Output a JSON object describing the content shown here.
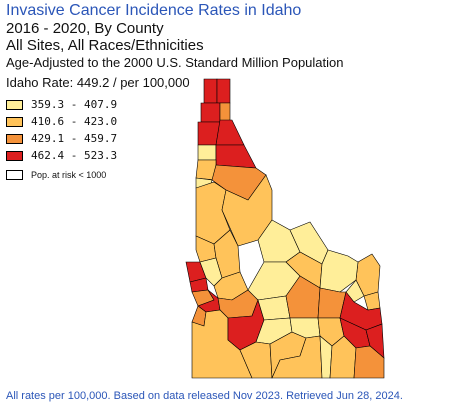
{
  "title": "Invasive Cancer Incidence Rates in Idaho",
  "subtitle1": "2016 - 2020, By County",
  "subtitle2": "All Sites, All Races/Ethnicities",
  "subtitle3": "Age-Adjusted to the 2000 U.S. Standard Million Population",
  "state_rate": "Idaho Rate: 449.2 / per 100,000",
  "legend": [
    {
      "range": "359.3 - 407.9",
      "color": "#ffee99"
    },
    {
      "range": "410.6 - 423.0",
      "color": "#ffc35a"
    },
    {
      "range": "429.1 - 459.7",
      "color": "#f4923a"
    },
    {
      "range": "462.4 - 523.3",
      "color": "#dc1f1f"
    }
  ],
  "legend_na": {
    "label": "Pop. at risk < 1000",
    "color": "#ffffff"
  },
  "footer": "All rates per 100,000. Based on data released Nov 2023. Retrieved Jun 28, 2024.",
  "colors": {
    "c1": "#ffee99",
    "c2": "#ffc35a",
    "c3": "#f4923a",
    "c4": "#dc1f1f",
    "title": "#2b56b8"
  }
}
